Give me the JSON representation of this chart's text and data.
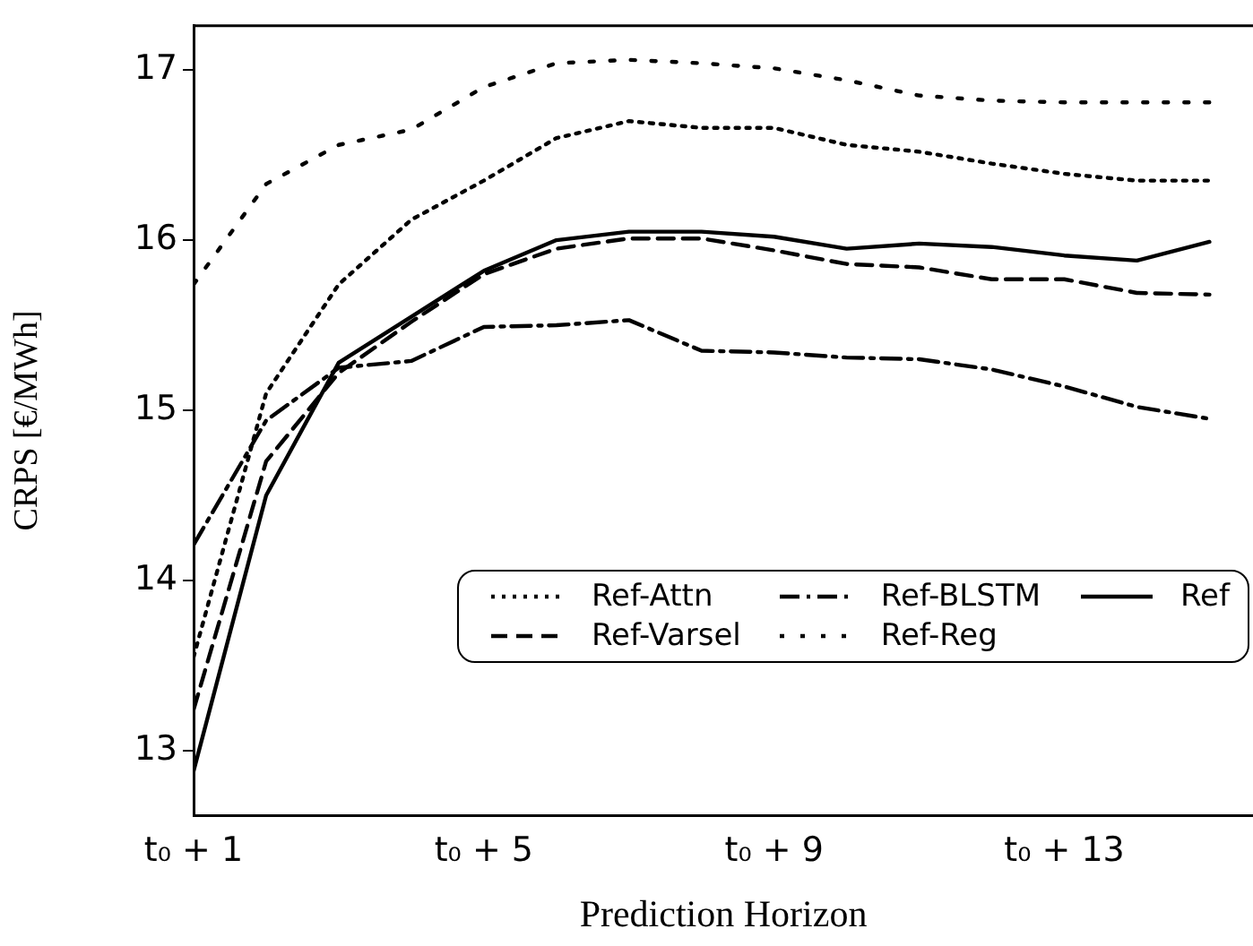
{
  "chart_data": {
    "type": "line",
    "xlabel": "Prediction Horizon",
    "ylabel": "CRPS [€/MWh]",
    "x": [
      1,
      2,
      3,
      4,
      5,
      6,
      7,
      8,
      9,
      10,
      11,
      12,
      13,
      14,
      15
    ],
    "xlim": [
      1,
      15.6
    ],
    "xticks": [
      {
        "value": 1,
        "label": "t₀ + 1"
      },
      {
        "value": 5,
        "label": "t₀ + 5"
      },
      {
        "value": 9,
        "label": "t₀ + 9"
      },
      {
        "value": 13,
        "label": "t₀ + 13"
      }
    ],
    "ylim": [
      12.62,
      17.26
    ],
    "yticks": [
      13,
      14,
      15,
      16,
      17
    ],
    "grid": false,
    "legend": "lower right",
    "marker": "none",
    "series": [
      {
        "name": "Ref-Attn",
        "color": "#000000",
        "line_style": "dotted",
        "values": [
          13.55,
          15.1,
          15.74,
          16.12,
          16.35,
          16.6,
          16.7,
          16.66,
          16.66,
          16.56,
          16.52,
          16.45,
          16.39,
          16.35,
          16.35
        ]
      },
      {
        "name": "Ref-Varsel",
        "color": "#000000",
        "line_style": "dashed",
        "values": [
          13.24,
          14.7,
          15.22,
          15.52,
          15.8,
          15.95,
          16.01,
          16.01,
          15.94,
          15.86,
          15.84,
          15.77,
          15.77,
          15.69,
          15.68
        ]
      },
      {
        "name": "Ref-BLSTM",
        "color": "#000000",
        "line_style": "dashdot",
        "values": [
          14.21,
          14.94,
          15.25,
          15.29,
          15.49,
          15.5,
          15.53,
          15.35,
          15.34,
          15.31,
          15.3,
          15.24,
          15.14,
          15.02,
          14.95
        ]
      },
      {
        "name": "Ref-Reg",
        "color": "#000000",
        "line_style": "loosely dotted",
        "values": [
          15.74,
          16.33,
          16.56,
          16.65,
          16.9,
          17.04,
          17.06,
          17.04,
          17.01,
          16.94,
          16.85,
          16.82,
          16.81,
          16.81,
          16.81
        ]
      },
      {
        "name": "Ref",
        "color": "#000000",
        "line_style": "solid",
        "values": [
          12.88,
          14.5,
          15.28,
          15.55,
          15.82,
          16.0,
          16.05,
          16.05,
          16.02,
          15.95,
          15.98,
          15.96,
          15.91,
          15.88,
          15.99
        ]
      }
    ]
  }
}
